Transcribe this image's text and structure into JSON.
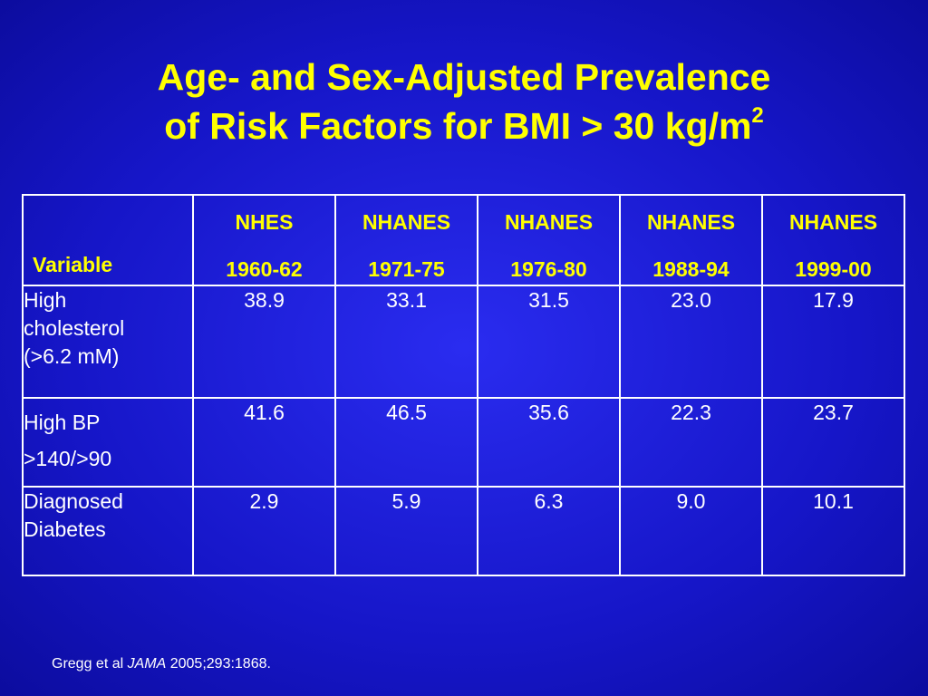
{
  "slide": {
    "title_line1": "Age- and Sex-Adjusted Prevalence",
    "title_line2": "of Risk Factors for BMI > 30 kg/m",
    "title_sup": "2"
  },
  "table": {
    "header": {
      "variable": "Variable",
      "columns": [
        {
          "name": "NHES",
          "years": "1960-62"
        },
        {
          "name": "NHANES",
          "years": "1971-75"
        },
        {
          "name": "NHANES",
          "years": "1976-80"
        },
        {
          "name": "NHANES",
          "years": "1988-94"
        },
        {
          "name": "NHANES",
          "years": "1999-00"
        }
      ]
    },
    "rows": [
      {
        "label": "High cholesterol (>6.2 mM)",
        "label_lines": [
          "High",
          "cholesterol",
          "(>6.2 mM)"
        ],
        "values": [
          "38.9",
          "33.1",
          "31.5",
          "23.0",
          "17.9"
        ]
      },
      {
        "label": "High BP >140/>90",
        "label_lines": [
          "High BP",
          ">140/>90"
        ],
        "values": [
          "41.6",
          "46.5",
          "35.6",
          "22.3",
          "23.7"
        ]
      },
      {
        "label": "Diagnosed Diabetes",
        "label_lines": [
          "Diagnosed",
          "Diabetes"
        ],
        "values": [
          "2.9",
          "5.9",
          "6.3",
          "9.0",
          "10.1"
        ]
      }
    ]
  },
  "footnote": {
    "authors": "Gregg et al ",
    "journal": "JAMA",
    "citation": " 2005;293:1868."
  },
  "colors": {
    "background": "#1a1ad6",
    "title": "#ffff00",
    "header_text": "#ffff00",
    "body_text": "#ffffff",
    "grid": "#ffffff"
  }
}
